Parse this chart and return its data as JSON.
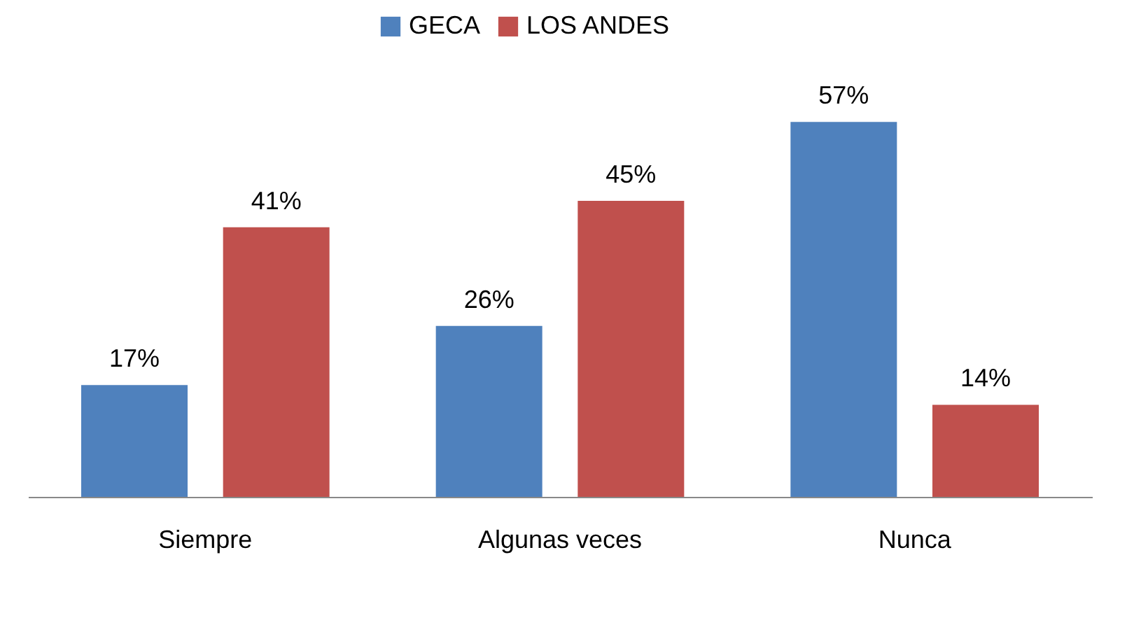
{
  "chart_data": {
    "type": "bar",
    "categories": [
      "Siempre",
      "Algunas veces",
      "Nunca"
    ],
    "series": [
      {
        "name": "GECA",
        "color": "#4f81bd",
        "values": [
          17,
          26,
          57
        ],
        "value_labels": [
          "17%",
          "26%",
          "57%"
        ]
      },
      {
        "name": "LOS ANDES",
        "color": "#c0504d",
        "values": [
          41,
          45,
          14
        ],
        "value_labels": [
          "41%",
          "45%",
          "14%"
        ]
      }
    ],
    "legend": "top",
    "grid": false
  }
}
